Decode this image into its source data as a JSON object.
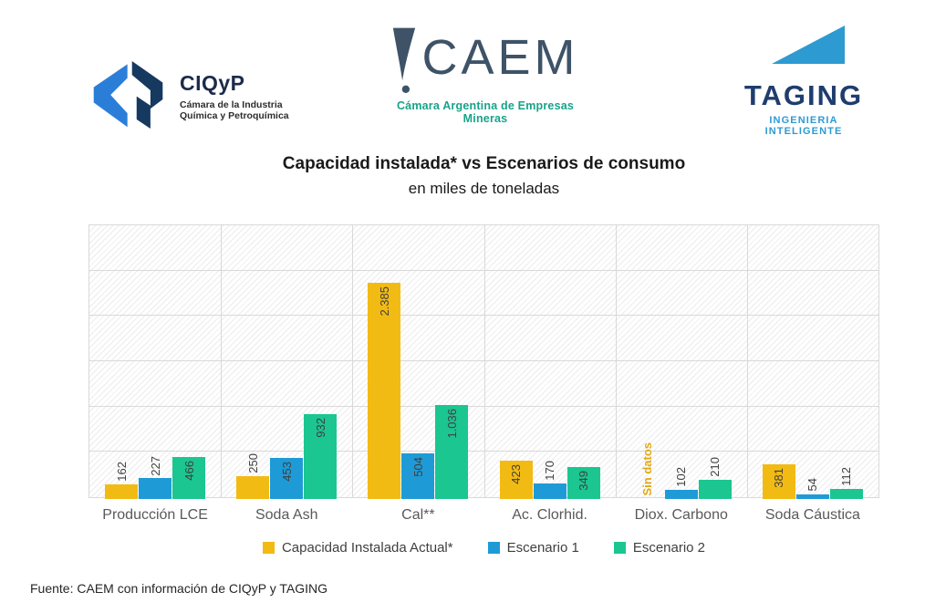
{
  "header": {
    "logos": {
      "ciqyp": {
        "name": "CIQyP",
        "tagline_line1": "Cámara de la Industria",
        "tagline_line2": "Química y Petroquímica"
      },
      "caem": {
        "name": "CAEM",
        "tagline": "Cámara Argentina de Empresas Mineras"
      },
      "taging": {
        "name": "TAGING",
        "tagline": "INGENIERIA INTELIGENTE"
      }
    }
  },
  "chart_data": {
    "type": "bar",
    "title": "Capacidad instalada* vs Escenarios de consumo",
    "subtitle": "en miles de toneladas",
    "categories": [
      "Producción LCE",
      "Soda Ash",
      "Cal**",
      "Ac. Clorhid.",
      "Diox. Carbono",
      "Soda Cáustica"
    ],
    "series": [
      {
        "name": "Capacidad Instalada Actual*",
        "color": "#F2BB13",
        "values": [
          162,
          250,
          2385,
          423,
          null,
          381
        ],
        "labels": [
          "162",
          "250",
          "2.385",
          "423",
          null,
          "381"
        ]
      },
      {
        "name": "Escenario 1",
        "color": "#1E9BD7",
        "values": [
          227,
          453,
          504,
          170,
          102,
          54
        ],
        "labels": [
          "227",
          "453",
          "504",
          "170",
          "102",
          "54"
        ]
      },
      {
        "name": "Escenario 2",
        "color": "#1BC690",
        "values": [
          466,
          932,
          1036,
          349,
          210,
          112
        ],
        "labels": [
          "466",
          "932",
          "1.036",
          "349",
          "210",
          "112"
        ]
      }
    ],
    "no_data_label": "Sin datos",
    "no_data_color": "#E2A912",
    "ylim": [
      0,
      3000
    ],
    "grid_step": 500,
    "gridlines": true,
    "legend_position": "bottom",
    "value_labels_rotated": true
  },
  "footer": {
    "source": "Fuente: CAEM con información de CIQyP y TAGING"
  },
  "colors": {
    "bar_yellow": "#F2BB13",
    "bar_blue": "#1E9BD7",
    "bar_green": "#1BC690",
    "grid": "#d9d9d9",
    "hatch": "#ececec",
    "value_label": "#3f3f3f",
    "category_label": "#595959",
    "legend_text": "#404040",
    "ciqyp_light_blue": "#2b7ed8",
    "ciqyp_navy": "#16395f",
    "caem_slate": "#3e5368",
    "caem_teal": "#17a389",
    "taging_light_blue": "#2e9ad2",
    "taging_navy": "#1f3d6e"
  }
}
